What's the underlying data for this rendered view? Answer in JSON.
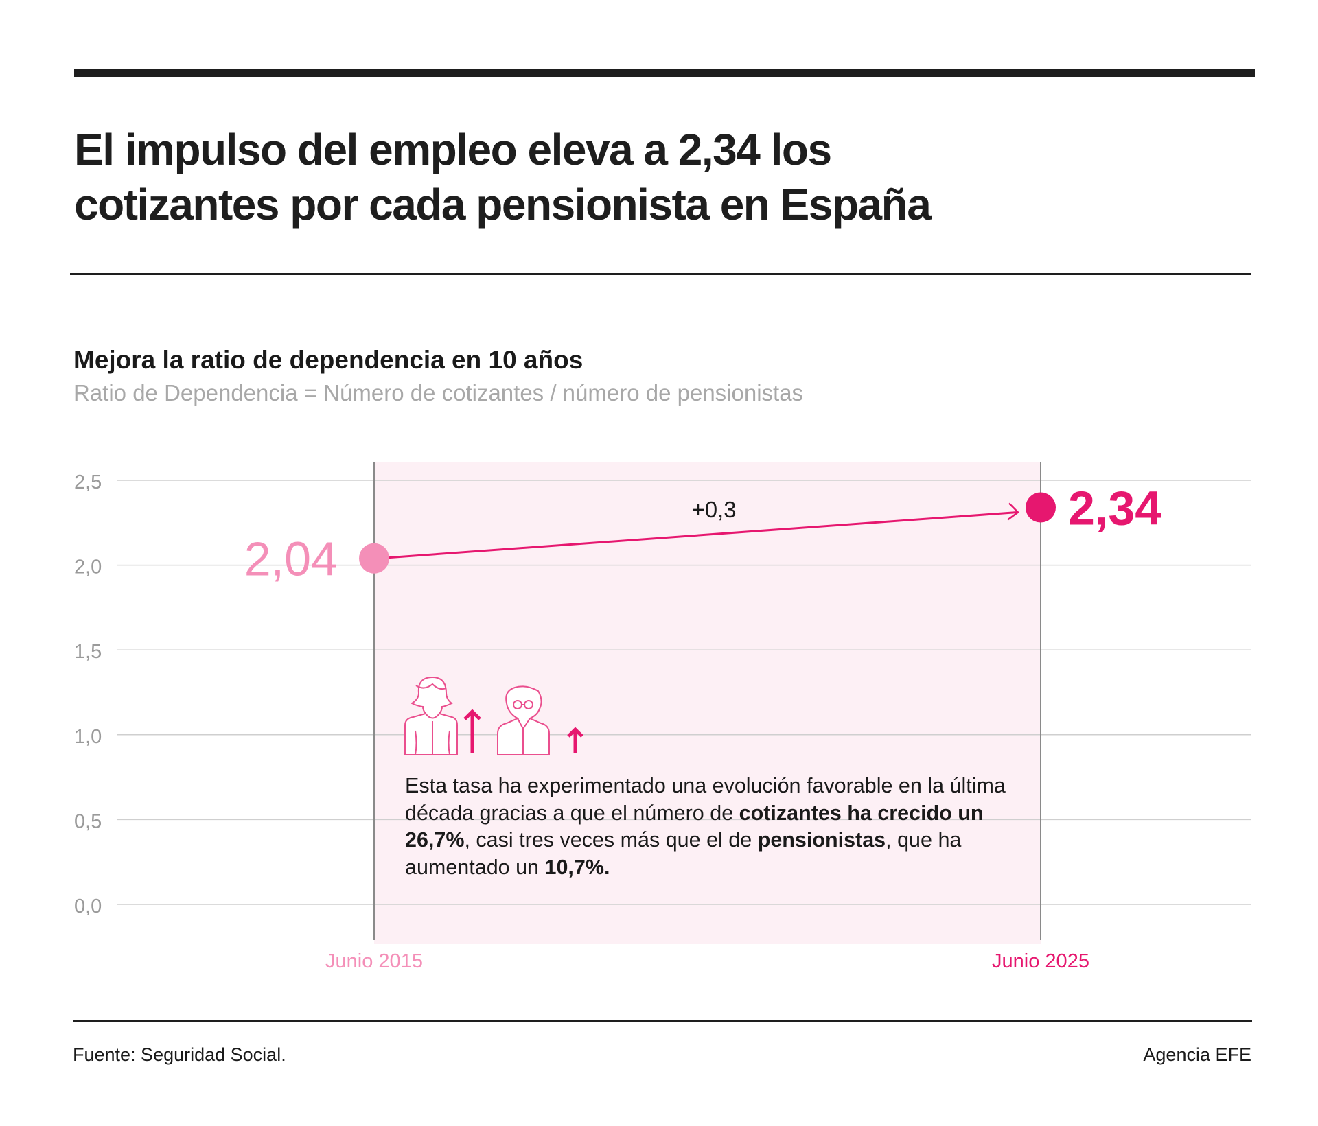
{
  "header": {
    "title_line1": "El impulso del empleo eleva a 2,34 los",
    "title_line2": "cotizantes por cada pensionista en España"
  },
  "chart_data": {
    "type": "line",
    "title": "Mejora la ratio de dependencia en 10 años",
    "subtitle": "Ratio de Dependencia = Número de cotizantes / número de pensionistas",
    "x": [
      "Junio 2015",
      "Junio 2025"
    ],
    "values": [
      2.04,
      2.34
    ],
    "value_labels": [
      "2,04",
      "2,34"
    ],
    "change_label": "+0,3",
    "ylim": [
      0,
      2.5
    ],
    "yticks": [
      0,
      0.5,
      1.0,
      1.5,
      2.0,
      2.5
    ],
    "ytick_labels": [
      "0,0",
      "0,5",
      "1,0",
      "1,5",
      "2,0",
      "2,5"
    ],
    "grid": true,
    "colors": {
      "start": "#f48fb8",
      "end": "#e6176f",
      "shade": "#fdf0f5",
      "grid": "#cfcfcf",
      "axis_text": "#9a9a9a"
    }
  },
  "note": {
    "p1": "Esta tasa ha experimentado una evolución favorable en la última década gracias a que el número de ",
    "b1": "cotizantes ha crecido un 26,7%",
    "p2": ", casi tres veces más que el de ",
    "b2": "pensionistas",
    "p3": ", que ha aumentado un ",
    "b3": "10,7%.",
    "icons": [
      "woman-worker-icon",
      "arrow-up-icon",
      "elderly-man-icon",
      "arrow-up-icon"
    ]
  },
  "footer": {
    "source": "Fuente: Seguridad Social.",
    "credit": "Agencia EFE"
  }
}
